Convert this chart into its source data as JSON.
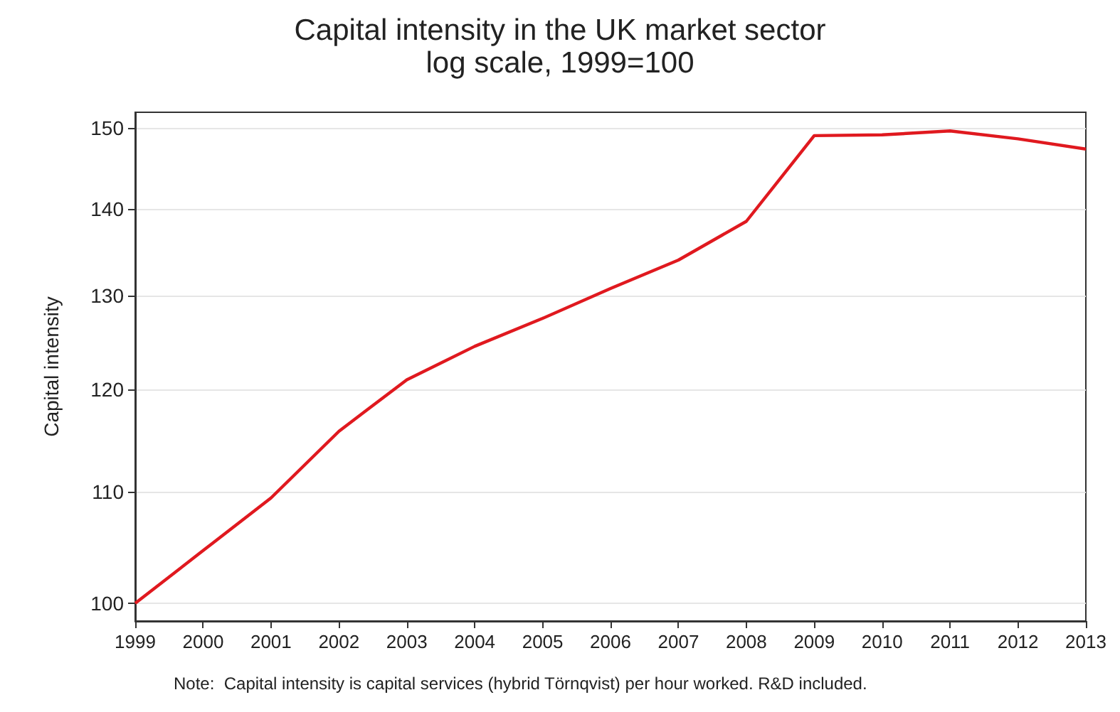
{
  "chart_data": {
    "type": "line",
    "title": "Capital intensity in the UK market sector",
    "subtitle": "log scale, 1999=100",
    "ylabel": "Capital intensity",
    "categories": [
      "1999",
      "2000",
      "2001",
      "2002",
      "2003",
      "2004",
      "2005",
      "2006",
      "2007",
      "2008",
      "2009",
      "2010",
      "2011",
      "2012",
      "2013"
    ],
    "series": [
      {
        "color": "#e0191f",
        "values": [
          100,
          104.6,
          109.4,
          115.8,
          121,
          124.5,
          127.5,
          130.8,
          134,
          138.5,
          149,
          149.1,
          149.6,
          148.6,
          147.3
        ]
      }
    ],
    "ylim": [
      98.5,
      152
    ],
    "yticks": [
      100,
      110,
      120,
      130,
      140,
      150
    ],
    "log": "y",
    "grid": "y",
    "marker": "none",
    "line_style": "solid",
    "annotations": [
      "Note:  Capital intensity is capital services (hybrid Törnqvist) per hour worked. R&D included."
    ]
  }
}
